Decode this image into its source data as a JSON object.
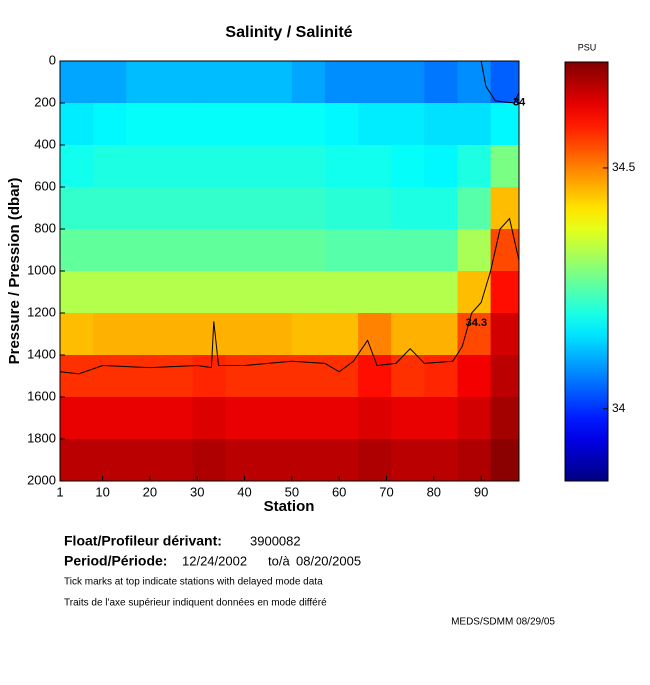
{
  "chart_data": {
    "type": "heatmap",
    "title": "Salinity / Salinité",
    "x_label": "Station",
    "y_label": "Pressure / Pression (dbar)",
    "colorbar_label": "PSU",
    "x_edges": [
      1,
      8,
      15,
      22,
      29,
      36,
      43,
      50,
      57,
      64,
      71,
      78,
      85,
      92,
      98
    ],
    "y_edges": [
      0,
      200,
      400,
      600,
      800,
      1000,
      1200,
      1400,
      1600,
      1800,
      2000
    ],
    "values": [
      [
        34.1,
        34.1,
        34.12,
        34.12,
        34.12,
        34.12,
        34.12,
        34.1,
        34.08,
        34.08,
        34.08,
        34.06,
        34.08,
        34.04
      ],
      [
        34.16,
        34.17,
        34.18,
        34.18,
        34.18,
        34.18,
        34.18,
        34.18,
        34.17,
        34.16,
        34.16,
        34.15,
        34.15,
        34.17
      ],
      [
        34.19,
        34.2,
        34.2,
        34.2,
        34.2,
        34.2,
        34.2,
        34.2,
        34.19,
        34.19,
        34.18,
        34.17,
        34.2,
        34.28
      ],
      [
        34.22,
        34.22,
        34.22,
        34.22,
        34.22,
        34.22,
        34.22,
        34.22,
        34.21,
        34.21,
        34.2,
        34.2,
        34.25,
        34.45
      ],
      [
        34.26,
        34.26,
        34.26,
        34.26,
        34.26,
        34.26,
        34.26,
        34.26,
        34.25,
        34.25,
        34.25,
        34.25,
        34.32,
        34.55
      ],
      [
        34.33,
        34.33,
        34.33,
        34.33,
        34.33,
        34.33,
        34.33,
        34.33,
        34.33,
        34.33,
        34.33,
        34.33,
        34.45,
        34.6
      ],
      [
        34.45,
        34.46,
        34.46,
        34.46,
        34.46,
        34.46,
        34.46,
        34.45,
        34.45,
        34.5,
        34.46,
        34.46,
        34.55,
        34.65
      ],
      [
        34.57,
        34.57,
        34.57,
        34.57,
        34.58,
        34.57,
        34.57,
        34.57,
        34.57,
        34.6,
        34.57,
        34.58,
        34.62,
        34.67
      ],
      [
        34.63,
        34.63,
        34.63,
        34.63,
        34.64,
        34.63,
        34.63,
        34.63,
        34.63,
        34.64,
        34.63,
        34.63,
        34.65,
        34.69
      ],
      [
        34.67,
        34.67,
        34.67,
        34.67,
        34.68,
        34.67,
        34.67,
        34.67,
        34.67,
        34.68,
        34.67,
        34.67,
        34.68,
        34.71
      ]
    ],
    "zlim": [
      33.85,
      34.72
    ],
    "zticks": [
      34,
      34.5
    ],
    "xlim": [
      1,
      98
    ],
    "ylim": [
      0,
      2000
    ],
    "xticks": [
      1,
      10,
      20,
      30,
      40,
      50,
      60,
      70,
      80,
      90
    ],
    "yticks": [
      0,
      200,
      400,
      600,
      800,
      1000,
      1200,
      1400,
      1600,
      1800,
      2000
    ],
    "contours": [
      {
        "label": "34.3",
        "x": [
          1,
          5,
          10,
          20,
          30,
          33,
          33.5,
          34.5,
          40,
          50,
          57,
          60,
          63,
          66,
          68,
          72,
          75,
          78,
          84,
          86,
          88,
          90,
          92,
          94,
          96,
          98
        ],
        "y": [
          1480,
          1490,
          1450,
          1460,
          1450,
          1460,
          1240,
          1450,
          1450,
          1430,
          1440,
          1480,
          1430,
          1330,
          1450,
          1440,
          1370,
          1440,
          1430,
          1360,
          1200,
          1150,
          1000,
          800,
          750,
          950
        ]
      },
      {
        "label": "34",
        "x": [
          90,
          91,
          93,
          97,
          98
        ],
        "y": [
          0,
          120,
          190,
          200,
          150
        ]
      }
    ]
  },
  "footer": {
    "float_label": "Float/Profileur dérivant:",
    "float_id": "3900082",
    "period_label": "Period/Période:",
    "start": "12/24/2002",
    "to": "to/à",
    "end": "08/20/2005",
    "note_en": "Tick marks at top indicate stations with delayed mode data",
    "note_fr": "Traits de l'axe supérieur indiquent données en mode différé",
    "credit": "MEDS/SDMM  08/29/05"
  }
}
